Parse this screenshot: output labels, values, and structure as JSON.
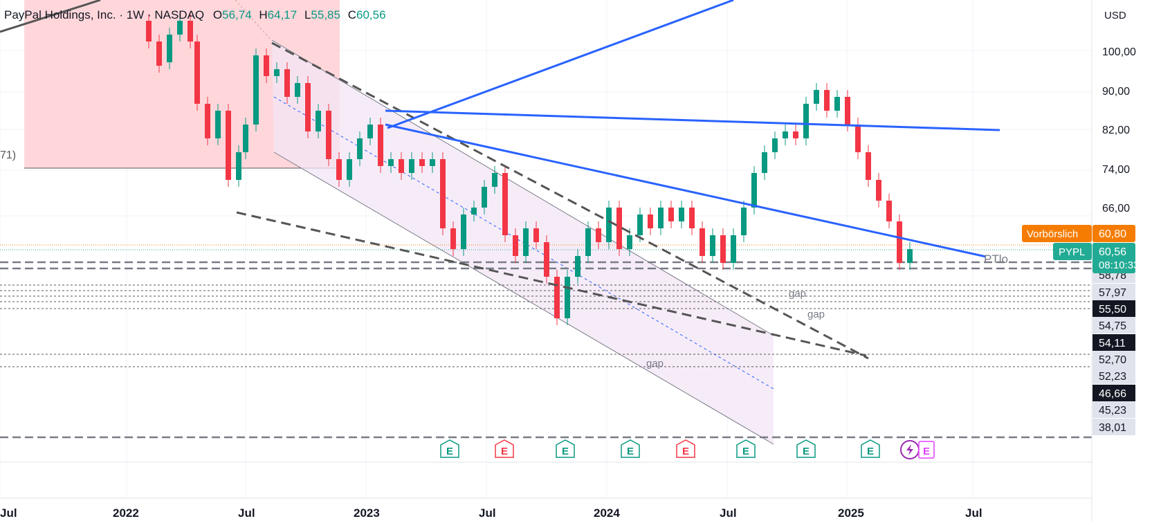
{
  "legend": {
    "symbol": "PayPal Holdings, Inc.",
    "interval": "1W",
    "exchange": "NASDAQ",
    "o_label": "O",
    "o_value": "56,74",
    "h_label": "H",
    "h_value": "64,17",
    "l_label": "L",
    "l_value": "55,85",
    "c_label": "C",
    "c_value": "60,56"
  },
  "currency": "USD",
  "left_edge_label": "71)",
  "chart_data": {
    "type": "candlestick",
    "title": "",
    "price_axis_labels": [
      "100,00",
      "90,00",
      "82,00",
      "74,00",
      "66,00"
    ],
    "time_axis_labels": [
      "Jul",
      "2022",
      "Jul",
      "2023",
      "Jul",
      "2024",
      "Jul",
      "2025",
      "Jul"
    ],
    "level_labels": [
      {
        "text": "58,78",
        "style": "light"
      },
      {
        "text": "57,97",
        "style": "light"
      },
      {
        "text": "55,50",
        "style": "dark"
      },
      {
        "text": "54,75",
        "style": "light"
      },
      {
        "text": "54,11",
        "style": "dark"
      },
      {
        "text": "52,70",
        "style": "light"
      },
      {
        "text": "52,23",
        "style": "light"
      },
      {
        "text": "46,66",
        "style": "dark"
      },
      {
        "text": "45,23",
        "style": "light"
      },
      {
        "text": "38,01",
        "style": "light"
      }
    ],
    "premarket": {
      "label": "Vorbörslich",
      "price": "60,80",
      "color": "#f57c00"
    },
    "last": {
      "label": "PYPL",
      "price": "60,56",
      "countdown": "08:10:33",
      "color": "#22ab94"
    },
    "gap_labels": [
      "gap",
      "gap",
      "gap"
    ],
    "drawing_label": "PTlo",
    "earnings_markers": [
      {
        "text": "E",
        "result": "beat"
      },
      {
        "text": "E",
        "result": "miss"
      },
      {
        "text": "E",
        "result": "beat"
      },
      {
        "text": "E",
        "result": "beat"
      },
      {
        "text": "E",
        "result": "miss"
      },
      {
        "text": "E",
        "result": "beat"
      },
      {
        "text": "E",
        "result": "beat"
      },
      {
        "text": "E",
        "result": "beat"
      },
      {
        "text": "E",
        "result": "upcoming"
      }
    ],
    "colors": {
      "up": "#089981",
      "down": "#f23645",
      "trend": "#2962ff",
      "channel": "#f3e5f5",
      "zone": "#ffcdd2"
    }
  }
}
